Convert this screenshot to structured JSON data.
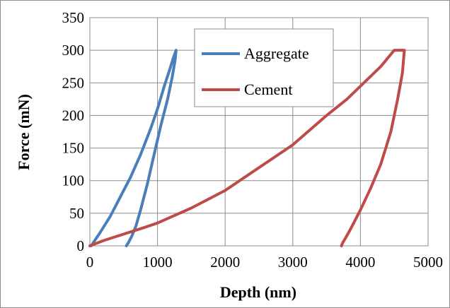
{
  "chart_data": {
    "type": "line",
    "xlabel": "Depth (nm)",
    "ylabel": "Force (mN)",
    "xlim": [
      0,
      5000
    ],
    "ylim": [
      0,
      350
    ],
    "xticks": [
      0,
      1000,
      2000,
      3000,
      4000,
      5000
    ],
    "yticks": [
      0,
      50,
      100,
      150,
      200,
      250,
      300,
      350
    ],
    "grid": true,
    "legend_position": "top-center",
    "series": [
      {
        "name": "Aggregate",
        "color": "#4a7ebb",
        "x": [
          20,
          150,
          300,
          450,
          600,
          750,
          900,
          1000,
          1100,
          1180,
          1240,
          1275,
          1260,
          1220,
          1150,
          1050,
          950,
          850,
          750,
          680,
          620,
          570,
          540
        ],
        "y": [
          0,
          20,
          45,
          75,
          105,
          140,
          180,
          210,
          245,
          270,
          290,
          300,
          285,
          260,
          225,
          185,
          140,
          95,
          55,
          30,
          15,
          5,
          0
        ]
      },
      {
        "name": "Cement",
        "color": "#be4b48",
        "x": [
          0,
          200,
          500,
          800,
          1000,
          1500,
          2000,
          2500,
          3000,
          3500,
          3800,
          4100,
          4300,
          4500,
          4550,
          4650,
          4620,
          4550,
          4450,
          4300,
          4150,
          4000,
          3850,
          3780,
          3740,
          3720
        ],
        "y": [
          0,
          8,
          18,
          28,
          35,
          58,
          85,
          120,
          155,
          200,
          225,
          255,
          275,
          300,
          300,
          300,
          265,
          225,
          175,
          125,
          88,
          55,
          25,
          12,
          5,
          0
        ]
      }
    ]
  }
}
